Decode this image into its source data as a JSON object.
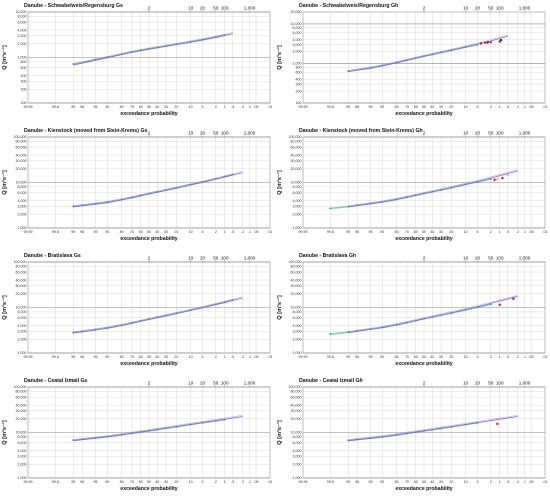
{
  "figure": {
    "common": {
      "xlabel": "exceedance probability",
      "ylabel": "Q [m³s⁻¹]",
      "prob_ticks": [
        "99.99",
        "99.8",
        "99",
        "98",
        "95",
        "90",
        "80",
        "70",
        "60",
        "50",
        "40",
        "30",
        "20",
        "10",
        "5",
        "2",
        "1",
        ".5",
        ".2",
        ".1",
        ".05",
        ".01"
      ],
      "return_period_ticks": [
        "2",
        "10",
        "20",
        "50",
        "100",
        "1,000"
      ],
      "colors": {
        "observed": "#2ca25f",
        "fit_curve": "#7b68ee",
        "extreme_red": "#d7191c",
        "extreme_orange": "#fdae61",
        "extreme_black": "#222222"
      }
    }
  },
  "chart_data": [
    {
      "type": "scatter",
      "title": "Danube - Schwabelweis/Regensburg Gs",
      "y_ticks": [
        "100",
        "200",
        "300",
        "400",
        "600",
        "800",
        "1,000",
        "2,000",
        "3,000",
        "4,000",
        "6,000",
        "8,000",
        "10,000"
      ],
      "ylim": [
        100,
        10000
      ],
      "xlim_probability": [
        99.99,
        0.01
      ],
      "series": [
        {
          "name": "",
          "role": "observed",
          "x": [
            99.0,
            95,
            90,
            80,
            70,
            60,
            50,
            40,
            30,
            20,
            10,
            5,
            2,
            1
          ],
          "y": [
            720,
            900,
            1010,
            1180,
            1320,
            1430,
            1540,
            1650,
            1780,
            1950,
            2200,
            2450,
            2800,
            3100
          ]
        },
        {
          "name": "",
          "role": "fit",
          "x": [
            99.0,
            90,
            70,
            50,
            30,
            10,
            2,
            0.5
          ],
          "y": [
            680,
            990,
            1300,
            1530,
            1770,
            2180,
            2780,
            3350
          ]
        }
      ]
    },
    {
      "type": "scatter",
      "title": "Danube - Schwabelweis/Regensburg Gh",
      "y_ticks": [
        "100",
        "200",
        "300",
        "400",
        "600",
        "800",
        "1,000",
        "2,000",
        "3,000",
        "4,000",
        "6,000",
        "8,000",
        "10,000",
        "20,000"
      ],
      "ylim": [
        100,
        20000
      ],
      "xlim_probability": [
        99.99,
        0.01
      ],
      "series": [
        {
          "name": "",
          "role": "observed",
          "x": [
            99.0,
            95,
            90,
            80,
            70,
            60,
            50,
            40,
            30,
            20,
            10,
            5
          ],
          "y": [
            640,
            760,
            880,
            1050,
            1210,
            1370,
            1530,
            1700,
            1900,
            2150,
            2600,
            3000
          ]
        },
        {
          "name": "",
          "role": "fit",
          "x": [
            99.0,
            90,
            70,
            50,
            30,
            10,
            2,
            0.5
          ],
          "y": [
            620,
            860,
            1200,
            1500,
            1880,
            2600,
            3700,
            4900
          ]
        },
        {
          "name": "",
          "role": "extreme_red",
          "x": [
            4,
            3,
            2,
            1
          ],
          "y": [
            3200,
            3350,
            3450,
            3550
          ]
        },
        {
          "name": "",
          "role": "extreme_black",
          "x": [
            2.5,
            0.9
          ],
          "y": [
            3400,
            3900
          ]
        }
      ]
    },
    {
      "type": "scatter",
      "title": "Danube - Kienstock (moved from Stein-Krems) Gs",
      "y_ticks": [
        "1,000",
        "2,000",
        "3,000",
        "4,000",
        "6,000",
        "8,000",
        "10,000",
        "20,000",
        "30,000",
        "40,000",
        "60,000",
        "80,000",
        "100,000"
      ],
      "ylim": [
        1000,
        100000
      ],
      "xlim_probability": [
        99.99,
        0.01
      ],
      "series": [
        {
          "name": "",
          "role": "observed",
          "x": [
            99.0,
            98,
            95,
            90,
            80,
            70,
            60,
            50,
            40,
            30,
            20,
            10,
            5,
            2,
            1,
            0.5
          ],
          "y": [
            3000,
            3150,
            3400,
            3700,
            4200,
            4700,
            5200,
            5700,
            6200,
            6800,
            7600,
            9000,
            10200,
            12000,
            13500,
            15000
          ]
        },
        {
          "name": "",
          "role": "fit",
          "x": [
            99.0,
            90,
            70,
            50,
            30,
            10,
            2,
            0.2
          ],
          "y": [
            2900,
            3600,
            4600,
            5600,
            6700,
            8800,
            11800,
            16500
          ]
        }
      ]
    },
    {
      "type": "scatter",
      "title": "Danube - Kienstock (moved from Stein-Krems) Gh",
      "y_ticks": [
        "1,000",
        "2,000",
        "3,000",
        "4,000",
        "6,000",
        "8,000",
        "10,000",
        "20,000",
        "30,000",
        "40,000",
        "60,000",
        "80,000",
        "100,000"
      ],
      "ylim": [
        1000,
        100000
      ],
      "xlim_probability": [
        99.99,
        0.01
      ],
      "series": [
        {
          "name": "",
          "role": "observed",
          "x": [
            99.8,
            99.0,
            98,
            95,
            90,
            80,
            70,
            60,
            50,
            40,
            30,
            20,
            10,
            5,
            2
          ],
          "y": [
            2700,
            2950,
            3150,
            3450,
            3750,
            4250,
            4750,
            5250,
            5750,
            6250,
            6850,
            7700,
            9100,
            10300,
            12000
          ]
        },
        {
          "name": "",
          "role": "fit",
          "x": [
            99.0,
            90,
            70,
            50,
            30,
            10,
            2,
            0.2
          ],
          "y": [
            2900,
            3700,
            4700,
            5700,
            6900,
            9100,
            12500,
            18000
          ]
        },
        {
          "name": "",
          "role": "extreme_red",
          "x": [
            1.5,
            0.8
          ],
          "y": [
            11500,
            12500
          ]
        },
        {
          "name": "",
          "role": "extreme_orange",
          "x": [
            1.2,
            0.5
          ],
          "y": [
            11800,
            14500
          ]
        }
      ]
    },
    {
      "type": "scatter",
      "title": "Danube - Bratislava Gs",
      "y_ticks": [
        "1,000",
        "2,000",
        "3,000",
        "4,000",
        "6,000",
        "8,000",
        "10,000",
        "20,000",
        "30,000",
        "40,000",
        "60,000",
        "80,000",
        "100,000"
      ],
      "ylim": [
        1000,
        100000
      ],
      "xlim_probability": [
        99.99,
        0.01
      ],
      "series": [
        {
          "name": "",
          "role": "observed",
          "x": [
            99.0,
            98,
            95,
            90,
            80,
            70,
            60,
            50,
            40,
            30,
            20,
            10,
            5,
            2,
            1,
            0.5
          ],
          "y": [
            2800,
            2950,
            3250,
            3550,
            4050,
            4550,
            5050,
            5550,
            6050,
            6650,
            7450,
            8800,
            10000,
            11700,
            13000,
            14500
          ]
        },
        {
          "name": "",
          "role": "fit",
          "x": [
            99.0,
            90,
            70,
            50,
            30,
            10,
            2,
            0.2
          ],
          "y": [
            2750,
            3500,
            4500,
            5450,
            6550,
            8600,
            11600,
            16200
          ]
        }
      ]
    },
    {
      "type": "scatter",
      "title": "Danube - Bratislava Gh",
      "y_ticks": [
        "1,000",
        "2,000",
        "3,000",
        "4,000",
        "6,000",
        "8,000",
        "10,000",
        "20,000",
        "30,000",
        "40,000",
        "60,000",
        "80,000",
        "100,000"
      ],
      "ylim": [
        1000,
        100000
      ],
      "xlim_probability": [
        99.99,
        0.01
      ],
      "series": [
        {
          "name": "",
          "role": "observed",
          "x": [
            99.8,
            99.0,
            98,
            95,
            90,
            80,
            70,
            60,
            50,
            40,
            30,
            20,
            10,
            5,
            2
          ],
          "y": [
            2600,
            2850,
            3050,
            3350,
            3650,
            4150,
            4650,
            5150,
            5650,
            6150,
            6750,
            7550,
            8900,
            10100,
            11800
          ]
        },
        {
          "name": "",
          "role": "fit",
          "x": [
            99.0,
            90,
            70,
            50,
            30,
            10,
            2,
            0.2
          ],
          "y": [
            2800,
            3600,
            4650,
            5650,
            6850,
            9000,
            12300,
            17500
          ]
        },
        {
          "name": "",
          "role": "extreme_red",
          "x": [
            1.0,
            0.3
          ],
          "y": [
            11500,
            15500
          ]
        }
      ]
    },
    {
      "type": "scatter",
      "title": "Danube - Ceatal Izmail Gs",
      "y_ticks": [
        "1,000",
        "2,000",
        "3,000",
        "4,000",
        "6,000",
        "8,000",
        "10,000",
        "20,000",
        "30,000",
        "40,000",
        "60,000",
        "80,000",
        "100,000"
      ],
      "ylim": [
        1000,
        100000
      ],
      "xlim_probability": [
        99.99,
        0.01
      ],
      "series": [
        {
          "name": "",
          "role": "observed",
          "x": [
            99.0,
            98,
            95,
            90,
            80,
            70,
            60,
            50,
            40,
            30,
            20,
            10,
            5,
            2,
            1
          ],
          "y": [
            6800,
            7100,
            7600,
            8100,
            8900,
            9600,
            10300,
            10900,
            11600,
            12400,
            13400,
            15000,
            16400,
            18000,
            19200
          ]
        },
        {
          "name": "",
          "role": "fit",
          "x": [
            99.0,
            90,
            70,
            50,
            30,
            10,
            2,
            0.2
          ],
          "y": [
            6600,
            8000,
            9600,
            10900,
            12400,
            15000,
            18300,
            22500
          ]
        }
      ]
    },
    {
      "type": "scatter",
      "title": "Danube - Ceatal Izmail Gh",
      "y_ticks": [
        "1,000",
        "2,000",
        "3,000",
        "4,000",
        "6,000",
        "8,000",
        "10,000",
        "20,000",
        "30,000",
        "40,000",
        "60,000",
        "80,000",
        "100,000"
      ],
      "ylim": [
        1000,
        100000
      ],
      "xlim_probability": [
        99.99,
        0.01
      ],
      "series": [
        {
          "name": "",
          "role": "observed",
          "x": [
            99.0,
            98,
            95,
            90,
            80,
            70,
            60,
            50,
            40,
            30,
            20,
            10,
            5
          ],
          "y": [
            6700,
            7000,
            7500,
            8000,
            8800,
            9500,
            10200,
            10800,
            11500,
            12300,
            13300,
            14900,
            16300
          ]
        },
        {
          "name": "",
          "role": "fit",
          "x": [
            99.0,
            90,
            70,
            50,
            30,
            10,
            2,
            0.2
          ],
          "y": [
            6600,
            8000,
            9600,
            10900,
            12400,
            15000,
            18300,
            22500
          ]
        },
        {
          "name": "",
          "role": "extreme_red",
          "x": [
            1.2
          ],
          "y": [
            15500
          ]
        }
      ]
    }
  ]
}
